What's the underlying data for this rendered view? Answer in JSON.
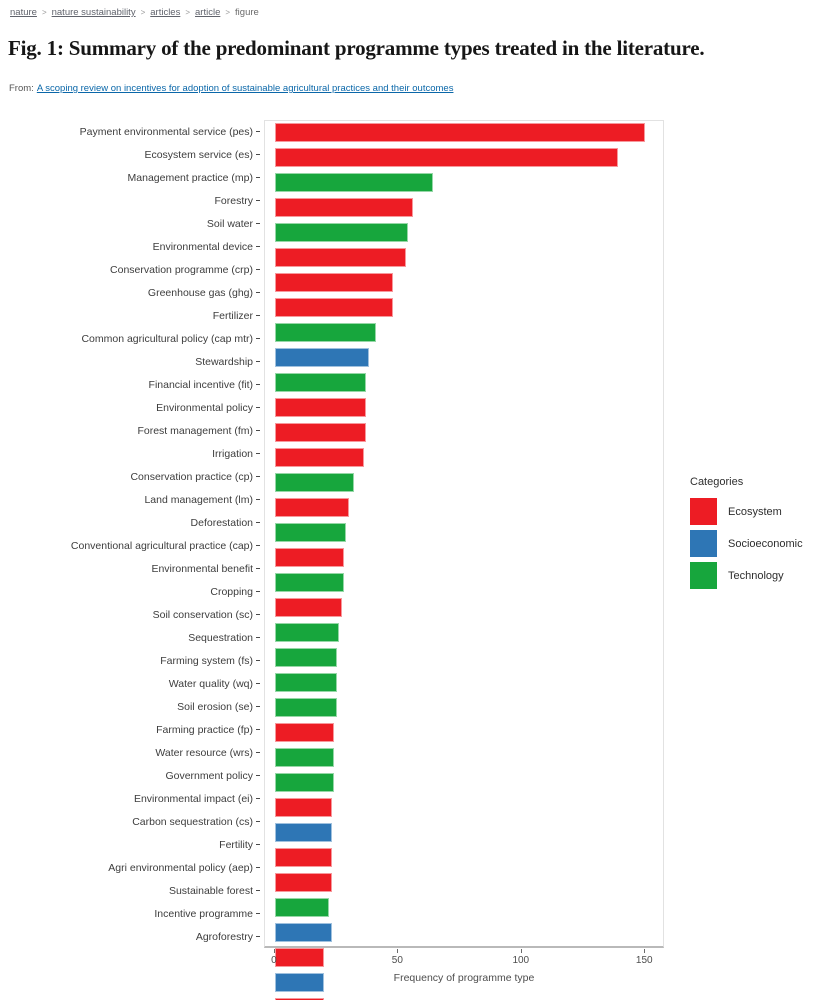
{
  "breadcrumb": {
    "separator": ">",
    "items": [
      {
        "label": "nature",
        "link": true
      },
      {
        "label": "nature sustainability",
        "link": true
      },
      {
        "label": "articles",
        "link": true
      },
      {
        "label": "article",
        "link": true
      },
      {
        "label": "figure",
        "link": false
      }
    ]
  },
  "header": {
    "title": "Fig. 1: Summary of the predominant programme types treated in the literature.",
    "from_label": "From:",
    "from_link": "A scoping review on incentives for adoption of sustainable agricultural practices and their outcomes"
  },
  "chart_data": {
    "type": "bar",
    "orientation": "horizontal",
    "title": "",
    "xlabel": "Frequency of programme type",
    "ylabel": "",
    "xlim": [
      -4,
      158
    ],
    "xticks": [
      0,
      50,
      100,
      150
    ],
    "grid": false,
    "legend": {
      "title": "Categories",
      "position": "right",
      "entries": [
        {
          "label": "Ecosystem",
          "color": "#ed1c24"
        },
        {
          "label": "Socioeconomic",
          "color": "#2e76b5"
        },
        {
          "label": "Technology",
          "color": "#17a63d"
        }
      ]
    },
    "colors": {
      "Ecosystem": "#ed1c24",
      "Socioeconomic": "#2e76b5",
      "Technology": "#17a63d"
    },
    "bars": [
      {
        "label": "Payment environmental service (pes)",
        "value": 150,
        "category": "Ecosystem"
      },
      {
        "label": "Ecosystem service (es)",
        "value": 139,
        "category": "Ecosystem"
      },
      {
        "label": "Management practice (mp)",
        "value": 64,
        "category": "Technology"
      },
      {
        "label": "Forestry",
        "value": 56,
        "category": "Ecosystem"
      },
      {
        "label": "Soil water",
        "value": 54,
        "category": "Technology"
      },
      {
        "label": "Environmental device",
        "value": 53,
        "category": "Ecosystem"
      },
      {
        "label": "Conservation programme (crp)",
        "value": 48,
        "category": "Ecosystem"
      },
      {
        "label": "Greenhouse gas (ghg)",
        "value": 48,
        "category": "Ecosystem"
      },
      {
        "label": "Fertilizer",
        "value": 41,
        "category": "Technology"
      },
      {
        "label": "Common agricultural policy (cap mtr)",
        "value": 38,
        "category": "Socioeconomic"
      },
      {
        "label": "Stewardship",
        "value": 37,
        "category": "Technology"
      },
      {
        "label": "Financial incentive (fit)",
        "value": 37,
        "category": "Ecosystem"
      },
      {
        "label": "Environmental policy",
        "value": 37,
        "category": "Ecosystem"
      },
      {
        "label": "Forest management (fm)",
        "value": 36,
        "category": "Ecosystem"
      },
      {
        "label": "Irrigation",
        "value": 32,
        "category": "Technology"
      },
      {
        "label": "Conservation practice (cp)",
        "value": 30,
        "category": "Ecosystem"
      },
      {
        "label": "Land management (lm)",
        "value": 29,
        "category": "Technology"
      },
      {
        "label": "Deforestation",
        "value": 28,
        "category": "Ecosystem"
      },
      {
        "label": "Conventional agricultural practice (cap)",
        "value": 28,
        "category": "Technology"
      },
      {
        "label": "Environmental benefit",
        "value": 27,
        "category": "Ecosystem"
      },
      {
        "label": "Cropping",
        "value": 26,
        "category": "Technology"
      },
      {
        "label": "Soil conservation (sc)",
        "value": 25,
        "category": "Technology"
      },
      {
        "label": "Sequestration",
        "value": 25,
        "category": "Technology"
      },
      {
        "label": "Farming system (fs)",
        "value": 25,
        "category": "Technology"
      },
      {
        "label": "Water quality (wq)",
        "value": 24,
        "category": "Ecosystem"
      },
      {
        "label": "Soil erosion (se)",
        "value": 24,
        "category": "Technology"
      },
      {
        "label": "Farming practice (fp)",
        "value": 24,
        "category": "Technology"
      },
      {
        "label": "Water resource (wrs)",
        "value": 23,
        "category": "Ecosystem"
      },
      {
        "label": "Government policy",
        "value": 23,
        "category": "Socioeconomic"
      },
      {
        "label": "Environmental impact (ei)",
        "value": 23,
        "category": "Ecosystem"
      },
      {
        "label": "Carbon sequestration (cs)",
        "value": 23,
        "category": "Ecosystem"
      },
      {
        "label": "Fertility",
        "value": 22,
        "category": "Technology"
      },
      {
        "label": "Agri environmental policy (aep)",
        "value": 23,
        "category": "Socioeconomic"
      },
      {
        "label": "Sustainable forest",
        "value": 20,
        "category": "Ecosystem"
      },
      {
        "label": "Incentive programme",
        "value": 20,
        "category": "Socioeconomic"
      },
      {
        "label": "Agroforestry",
        "value": 20,
        "category": "Ecosystem"
      }
    ]
  }
}
